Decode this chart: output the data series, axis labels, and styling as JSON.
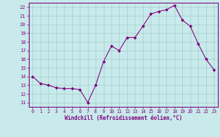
{
  "x": [
    0,
    1,
    2,
    3,
    4,
    5,
    6,
    7,
    8,
    9,
    10,
    11,
    12,
    13,
    14,
    15,
    16,
    17,
    18,
    19,
    20,
    21,
    22,
    23
  ],
  "y": [
    14,
    13.2,
    13,
    12.7,
    12.6,
    12.6,
    12.5,
    11.0,
    13.0,
    15.7,
    17.5,
    17.0,
    18.5,
    18.5,
    19.8,
    21.2,
    21.5,
    21.7,
    22.2,
    20.5,
    19.8,
    17.8,
    16.0,
    14.8
  ],
  "line_color": "#800080",
  "marker": "D",
  "marker_size": 2.0,
  "bg_color": "#c8eaea",
  "grid_color": "#a0cccc",
  "xlabel": "Windchill (Refroidissement éolien,°C)",
  "xlabel_color": "#800080",
  "tick_color": "#800080",
  "ylim": [
    10.5,
    22.5
  ],
  "xlim": [
    -0.5,
    23.5
  ],
  "yticks": [
    11,
    12,
    13,
    14,
    15,
    16,
    17,
    18,
    19,
    20,
    21,
    22
  ],
  "xticks": [
    0,
    1,
    2,
    3,
    4,
    5,
    6,
    7,
    8,
    9,
    10,
    11,
    12,
    13,
    14,
    15,
    16,
    17,
    18,
    19,
    20,
    21,
    22,
    23
  ]
}
